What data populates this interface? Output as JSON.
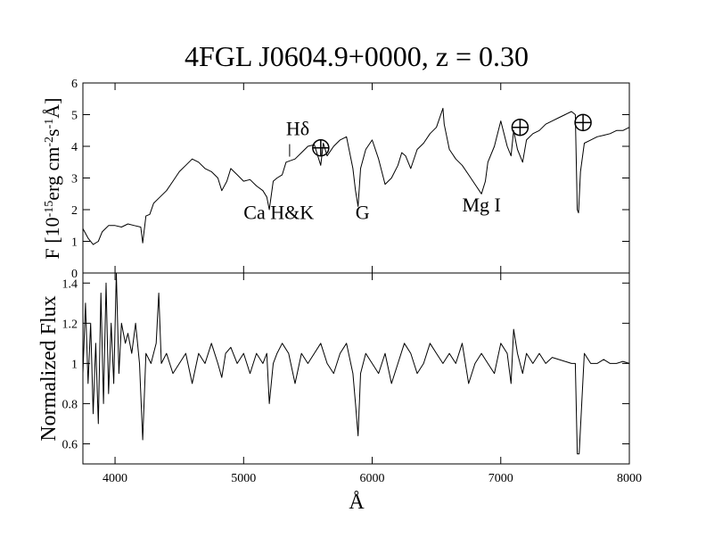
{
  "chart_data": {
    "type": "line",
    "title": "4FGL J0604.9+0000, z = 0.30",
    "xlabel": "Å",
    "xlim": [
      3750,
      8000
    ],
    "x_ticks": [
      4000,
      5000,
      6000,
      7000,
      8000
    ],
    "grid": false,
    "panels": [
      {
        "id": "flux",
        "ylabel_parts": [
          "F [10",
          "-15",
          "erg cm",
          "-2",
          "s",
          "-1",
          "Å]"
        ],
        "ylim": [
          0,
          6
        ],
        "y_ticks": [
          0,
          1,
          2,
          3,
          4,
          5,
          6
        ],
        "series": [
          {
            "x": [
              3750,
              3790,
              3830,
              3870,
              3900,
              3950,
              4000,
              4050,
              4100,
              4150,
              4200,
              4215,
              4240,
              4270,
              4300,
              4350,
              4400,
              4450,
              4500,
              4550,
              4600,
              4650,
              4700,
              4750,
              4800,
              4830,
              4870,
              4900,
              4950,
              5000,
              5050,
              5100,
              5150,
              5180,
              5200,
              5230,
              5260,
              5300,
              5330,
              5400,
              5450,
              5500,
              5550,
              5600,
              5620,
              5650,
              5700,
              5750,
              5800,
              5850,
              5870,
              5890,
              5910,
              5950,
              6000,
              6050,
              6100,
              6150,
              6200,
              6230,
              6260,
              6300,
              6350,
              6400,
              6450,
              6500,
              6550,
              6560,
              6580,
              6600,
              6650,
              6700,
              6750,
              6800,
              6850,
              6880,
              6900,
              6950,
              7000,
              7050,
              7080,
              7100,
              7130,
              7170,
              7200,
              7250,
              7300,
              7350,
              7400,
              7450,
              7500,
              7550,
              7580,
              7595,
              7605,
              7620,
              7650,
              7700,
              7750,
              7800,
              7850,
              7900,
              7950,
              8000
            ],
            "y": [
              1.4,
              1.1,
              0.9,
              1.0,
              1.3,
              1.5,
              1.5,
              1.45,
              1.55,
              1.5,
              1.45,
              0.95,
              1.8,
              1.85,
              2.2,
              2.4,
              2.6,
              2.9,
              3.2,
              3.4,
              3.6,
              3.5,
              3.3,
              3.2,
              3.0,
              2.6,
              2.9,
              3.3,
              3.1,
              2.9,
              2.95,
              2.75,
              2.6,
              2.4,
              2.0,
              2.9,
              3.0,
              3.1,
              3.5,
              3.6,
              3.8,
              4.0,
              4.05,
              3.4,
              4.1,
              3.7,
              4.0,
              4.2,
              4.3,
              3.3,
              2.6,
              2.1,
              3.3,
              3.9,
              4.2,
              3.6,
              2.8,
              3.0,
              3.4,
              3.8,
              3.7,
              3.3,
              3.9,
              4.1,
              4.4,
              4.6,
              5.2,
              4.7,
              4.3,
              3.9,
              3.6,
              3.4,
              3.1,
              2.8,
              2.5,
              2.9,
              3.5,
              4.0,
              4.8,
              4.0,
              3.7,
              4.5,
              3.9,
              3.5,
              4.2,
              4.4,
              4.5,
              4.7,
              4.8,
              4.9,
              5.0,
              5.1,
              5.0,
              2.0,
              1.9,
              3.2,
              4.1,
              4.2,
              4.3,
              4.35,
              4.4,
              4.5,
              4.5,
              4.6
            ]
          }
        ],
        "annotations": [
          {
            "text": "Hδ",
            "x": 5330,
            "y": 4.35
          },
          {
            "text": "Ca H&K",
            "x": 5000,
            "y": 1.7
          },
          {
            "text": "G",
            "x": 5870,
            "y": 1.7
          },
          {
            "text": "Mg I",
            "x": 6700,
            "y": 1.95
          }
        ],
        "markers": [
          {
            "symbol": "⊕",
            "x": 5600,
            "y": 3.95
          },
          {
            "symbol": "⊕",
            "x": 7150,
            "y": 4.6
          },
          {
            "symbol": "⊕",
            "x": 7640,
            "y": 4.75
          }
        ]
      },
      {
        "id": "normalized",
        "ylabel": "Normalized Flux",
        "ylim": [
          0.5,
          1.45
        ],
        "y_ticks": [
          0.6,
          0.8,
          1,
          1.2,
          1.4
        ],
        "series": [
          {
            "x": [
              3750,
              3770,
              3790,
              3810,
              3830,
              3850,
              3870,
              3890,
              3910,
              3930,
              3950,
              3970,
              3990,
              4010,
              4030,
              4050,
              4080,
              4100,
              4130,
              4160,
              4190,
              4215,
              4240,
              4280,
              4320,
              4340,
              4360,
              4400,
              4450,
              4500,
              4550,
              4600,
              4650,
              4700,
              4750,
              4800,
              4830,
              4860,
              4900,
              4950,
              5000,
              5050,
              5100,
              5150,
              5180,
              5200,
              5230,
              5260,
              5300,
              5350,
              5400,
              5450,
              5500,
              5550,
              5600,
              5650,
              5700,
              5750,
              5800,
              5850,
              5870,
              5890,
              5910,
              5950,
              6000,
              6050,
              6100,
              6150,
              6200,
              6250,
              6300,
              6350,
              6400,
              6450,
              6500,
              6550,
              6600,
              6650,
              6700,
              6750,
              6800,
              6850,
              6900,
              6950,
              7000,
              7050,
              7080,
              7100,
              7130,
              7170,
              7200,
              7250,
              7300,
              7350,
              7400,
              7450,
              7500,
              7550,
              7580,
              7595,
              7610,
              7630,
              7650,
              7700,
              7750,
              7800,
              7850,
              7900,
              7950,
              8000
            ],
            "y": [
              0.95,
              1.3,
              0.9,
              1.2,
              0.75,
              1.1,
              0.7,
              1.35,
              0.8,
              1.4,
              0.85,
              1.2,
              0.9,
              1.45,
              0.95,
              1.2,
              1.1,
              1.15,
              1.05,
              1.2,
              1.0,
              0.62,
              1.05,
              1.0,
              1.1,
              1.35,
              1.0,
              1.05,
              0.95,
              1.0,
              1.05,
              0.9,
              1.05,
              1.0,
              1.1,
              1.0,
              0.93,
              1.05,
              1.08,
              1.0,
              1.05,
              0.95,
              1.05,
              1.0,
              1.05,
              0.8,
              1.0,
              1.05,
              1.1,
              1.05,
              0.9,
              1.05,
              1.0,
              1.05,
              1.1,
              1.0,
              0.95,
              1.05,
              1.1,
              0.95,
              0.8,
              0.64,
              0.95,
              1.05,
              1.0,
              0.95,
              1.05,
              0.9,
              1.0,
              1.1,
              1.05,
              0.95,
              1.0,
              1.1,
              1.05,
              1.0,
              1.05,
              1.0,
              1.1,
              0.9,
              1.0,
              1.05,
              1.0,
              0.95,
              1.1,
              1.05,
              0.9,
              1.17,
              1.05,
              0.95,
              1.05,
              1.0,
              1.05,
              1.0,
              1.03,
              1.02,
              1.01,
              1.0,
              1.0,
              0.55,
              0.55,
              0.8,
              1.05,
              1.0,
              1.0,
              1.02,
              1.0,
              1.0,
              1.01,
              1.0
            ]
          }
        ]
      }
    ]
  }
}
